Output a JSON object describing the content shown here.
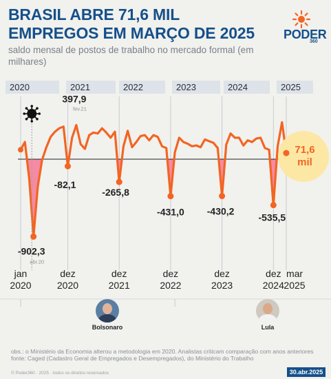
{
  "header": {
    "title": "BRASIL ABRE 71,6 MIL EMPREGOS EM MARÇO DE 2025",
    "subtitle": "saldo mensal de postos de trabalho no mercado formal (em milhares)"
  },
  "brand": {
    "name": "PODER",
    "suffix": "360"
  },
  "chart_data": {
    "type": "line",
    "title": "BRASIL ABRE 71,6 MIL EMPREGOS EM MARÇO DE 2025",
    "subtitle": "saldo mensal de postos de trabalho no mercado formal (em milhares)",
    "ylim": [
      -1000,
      500
    ],
    "year_bands": [
      "2020",
      "2021",
      "2022",
      "2023",
      "2024",
      "2025"
    ],
    "x_ticks": [
      {
        "label": "jan 2020",
        "line1": "jan",
        "line2": "2020",
        "index": 0
      },
      {
        "label": "dez 2020",
        "line1": "dez",
        "line2": "2020",
        "index": 11
      },
      {
        "label": "dez 2021",
        "line1": "dez",
        "line2": "2021",
        "index": 23
      },
      {
        "label": "dez 2022",
        "line1": "dez",
        "line2": "2022",
        "index": 35
      },
      {
        "label": "dez 2023",
        "line1": "dez",
        "line2": "2023",
        "index": 47
      },
      {
        "label": "dez 2024",
        "line1": "dez",
        "line2": "2024",
        "index": 59
      },
      {
        "label": "mar 2025",
        "line1": "mar",
        "line2": "2025",
        "index": 62
      }
    ],
    "series": [
      {
        "x": [
          "2020-01",
          "2020-02",
          "2020-03",
          "2020-04",
          "2020-05",
          "2020-06",
          "2020-07",
          "2020-08",
          "2020-09",
          "2020-10",
          "2020-11",
          "2020-12",
          "2021-01",
          "2021-02",
          "2021-03",
          "2021-04",
          "2021-05",
          "2021-06",
          "2021-07",
          "2021-08",
          "2021-09",
          "2021-10",
          "2021-11",
          "2021-12",
          "2022-01",
          "2022-02",
          "2022-03",
          "2022-04",
          "2022-05",
          "2022-06",
          "2022-07",
          "2022-08",
          "2022-09",
          "2022-10",
          "2022-11",
          "2022-12",
          "2023-01",
          "2023-02",
          "2023-03",
          "2023-04",
          "2023-05",
          "2023-06",
          "2023-07",
          "2023-08",
          "2023-09",
          "2023-10",
          "2023-11",
          "2023-12",
          "2024-01",
          "2024-02",
          "2024-03",
          "2024-04",
          "2024-05",
          "2024-06",
          "2024-07",
          "2024-08",
          "2024-09",
          "2024-10",
          "2024-11",
          "2024-12",
          "2025-01",
          "2025-02",
          "2025-03"
        ],
        "values": [
          110,
          200,
          -230,
          -902.3,
          -320,
          -10,
          140,
          260,
          320,
          360,
          380,
          -82.1,
          250,
          397.9,
          175,
          120,
          280,
          310,
          300,
          360,
          310,
          250,
          320,
          -265.8,
          150,
          330,
          140,
          200,
          270,
          280,
          220,
          280,
          260,
          150,
          130,
          -431.0,
          80,
          250,
          200,
          180,
          150,
          160,
          140,
          230,
          210,
          190,
          130,
          -430.2,
          170,
          300,
          250,
          250,
          160,
          220,
          200,
          240,
          250,
          130,
          110,
          -535.5,
          150,
          430,
          71.6
        ]
      }
    ],
    "annotations": [
      {
        "index": 3,
        "label": "-902,3",
        "sub": "abr.20"
      },
      {
        "index": 11,
        "label": "-82,1",
        "sub": ""
      },
      {
        "index": 13,
        "label": "397,9",
        "sub": "fev.21"
      },
      {
        "index": 23,
        "label": "-265,8",
        "sub": ""
      },
      {
        "index": 35,
        "label": "-431,0",
        "sub": ""
      },
      {
        "index": 47,
        "label": "-430,2",
        "sub": ""
      },
      {
        "index": 59,
        "label": "-535,5",
        "sub": ""
      }
    ],
    "highlight": {
      "index": 62,
      "value_text": "71,6",
      "unit_text": "mil"
    },
    "colors": {
      "line": "#f26522",
      "negative_fill": "#f48ba3",
      "highlight_bubble": "#fde7a4",
      "band": "#dde3e8",
      "title": "#15508a"
    }
  },
  "people": [
    {
      "name": "Bolsonaro",
      "index": 11
    },
    {
      "name": "Lula",
      "index": 47
    }
  ],
  "footer": {
    "obs": "obs.: o Ministério da Economia alterou a metodologia em 2020. Analistas criticam comparação com anos anteriores",
    "source": "fonte: Caged (Cadastro Geral de Empregados e Desempregados), do Ministério do Trabalho",
    "copyright": "© Poder360 · 2025 · todos os direitos reservados",
    "date": "30.abr.2025"
  }
}
